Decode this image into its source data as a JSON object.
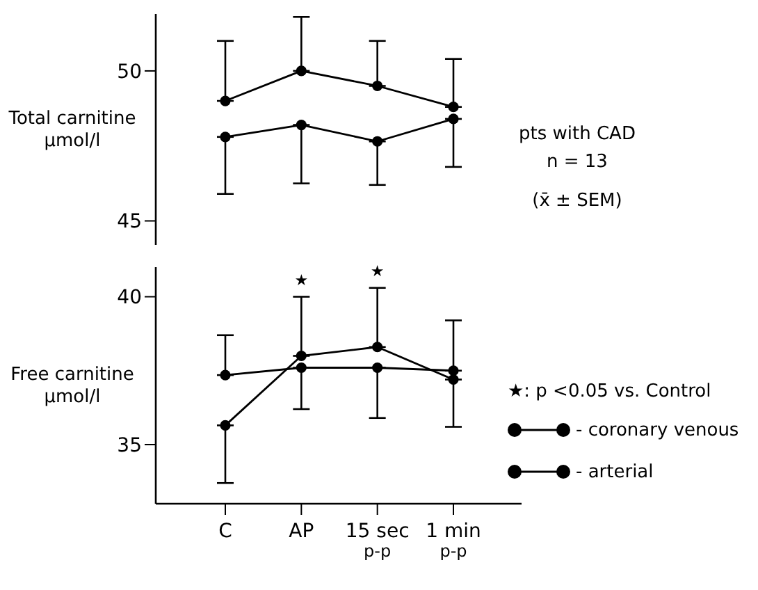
{
  "chart_data": [
    {
      "type": "line",
      "ylabel": "Total carnitine µmol/l",
      "categories": [
        null,
        null,
        null,
        null
      ],
      "ylim": [
        44.2,
        51.9
      ],
      "yticks": [
        45,
        50
      ],
      "tick_labels": "y",
      "marker": "circle",
      "line_style": "solid",
      "legend": false,
      "grid": false,
      "series": [
        {
          "color": "#000000",
          "values": [
            49.0,
            50.0,
            49.5,
            48.8
          ],
          "errors": [
            [
              49.0,
              51.0
            ],
            [
              50.0,
              51.8
            ],
            [
              49.5,
              51.0
            ],
            [
              48.8,
              50.4
            ]
          ]
        },
        {
          "color": "#000000",
          "values": [
            47.8,
            48.2,
            47.65,
            48.4
          ],
          "errors": [
            [
              45.9,
              47.8
            ],
            [
              46.25,
              48.2
            ],
            [
              46.2,
              47.65
            ],
            [
              46.8,
              48.4
            ]
          ]
        }
      ],
      "annotations": [
        "pts with CAD",
        "n = 13",
        "(x̄ ± SEM)"
      ]
    },
    {
      "type": "line",
      "ylabel": "Free carnitine µmol/l",
      "categories": [
        "C",
        "AP",
        "15 sec p-p",
        "1 min p-p"
      ],
      "ylim": [
        33,
        41
      ],
      "yticks": [
        35,
        40
      ],
      "marker": "circle",
      "line_style": "solid",
      "legend": "right",
      "grid": false,
      "series": [
        {
          "name": "- coronary venous",
          "color": "#000000",
          "values": [
            37.35,
            37.6,
            37.6,
            37.5
          ],
          "errors": [
            [
              37.35,
              38.7
            ],
            [
              36.2,
              37.6
            ],
            [
              35.9,
              37.6
            ],
            [
              37.5,
              39.2
            ]
          ]
        },
        {
          "name": "- arterial",
          "color": "#000000",
          "values": [
            35.65,
            38.0,
            38.3,
            37.2
          ],
          "errors": [
            [
              33.7,
              35.65
            ],
            [
              38.0,
              40.0
            ],
            [
              38.3,
              40.3
            ],
            [
              35.6,
              37.2
            ]
          ]
        }
      ],
      "annotations": [
        {
          "text": "★",
          "x": "AP",
          "y": 40.0
        },
        {
          "text": "★",
          "x": "15 sec p-p",
          "y": 40.3
        },
        "★: p <0.05 vs. Control"
      ]
    }
  ]
}
